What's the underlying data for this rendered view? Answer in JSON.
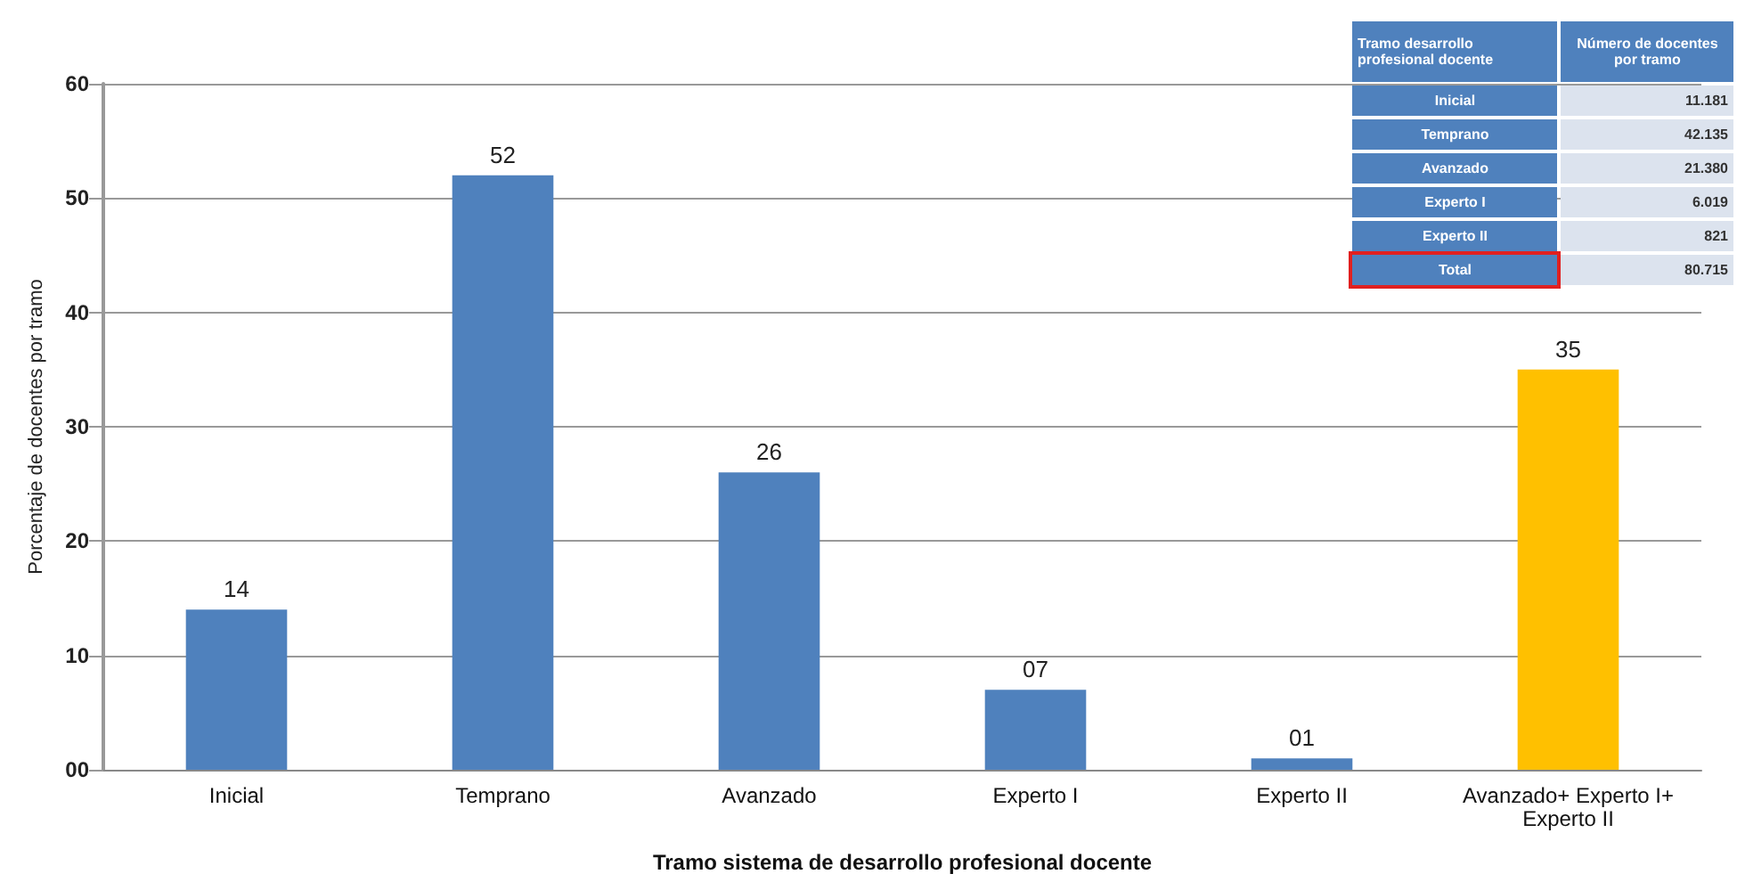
{
  "chart_data": {
    "type": "bar",
    "xlabel": "Tramo sistema de desarrollo profesional docente",
    "ylabel": "Porcentaje de docentes por tramo",
    "categories": [
      "Inicial",
      "Temprano",
      "Avanzado",
      "Experto I",
      "Experto II",
      "Avanzado+ Experto I+\nExperto II"
    ],
    "values": [
      14,
      52,
      26,
      7,
      1,
      35
    ],
    "value_labels": [
      "14",
      "52",
      "26",
      "07",
      "01",
      "35"
    ],
    "colors": [
      "#4f81bd",
      "#4f81bd",
      "#4f81bd",
      "#4f81bd",
      "#4f81bd",
      "#ffc000"
    ],
    "ylim": [
      0,
      60
    ],
    "yticks": [
      {
        "value": 0,
        "label": "00"
      },
      10,
      20,
      30,
      40,
      50,
      60
    ],
    "grid": "y",
    "annotations": [
      "Tramo desarrollo profesional docente",
      "Número de docentes por tramo",
      "Inicial",
      "11.181",
      "Temprano",
      "42.135",
      "Avanzado",
      "21.380",
      "Experto I",
      "6.019",
      "Experto II",
      "821",
      "Total",
      "80.715"
    ]
  }
}
